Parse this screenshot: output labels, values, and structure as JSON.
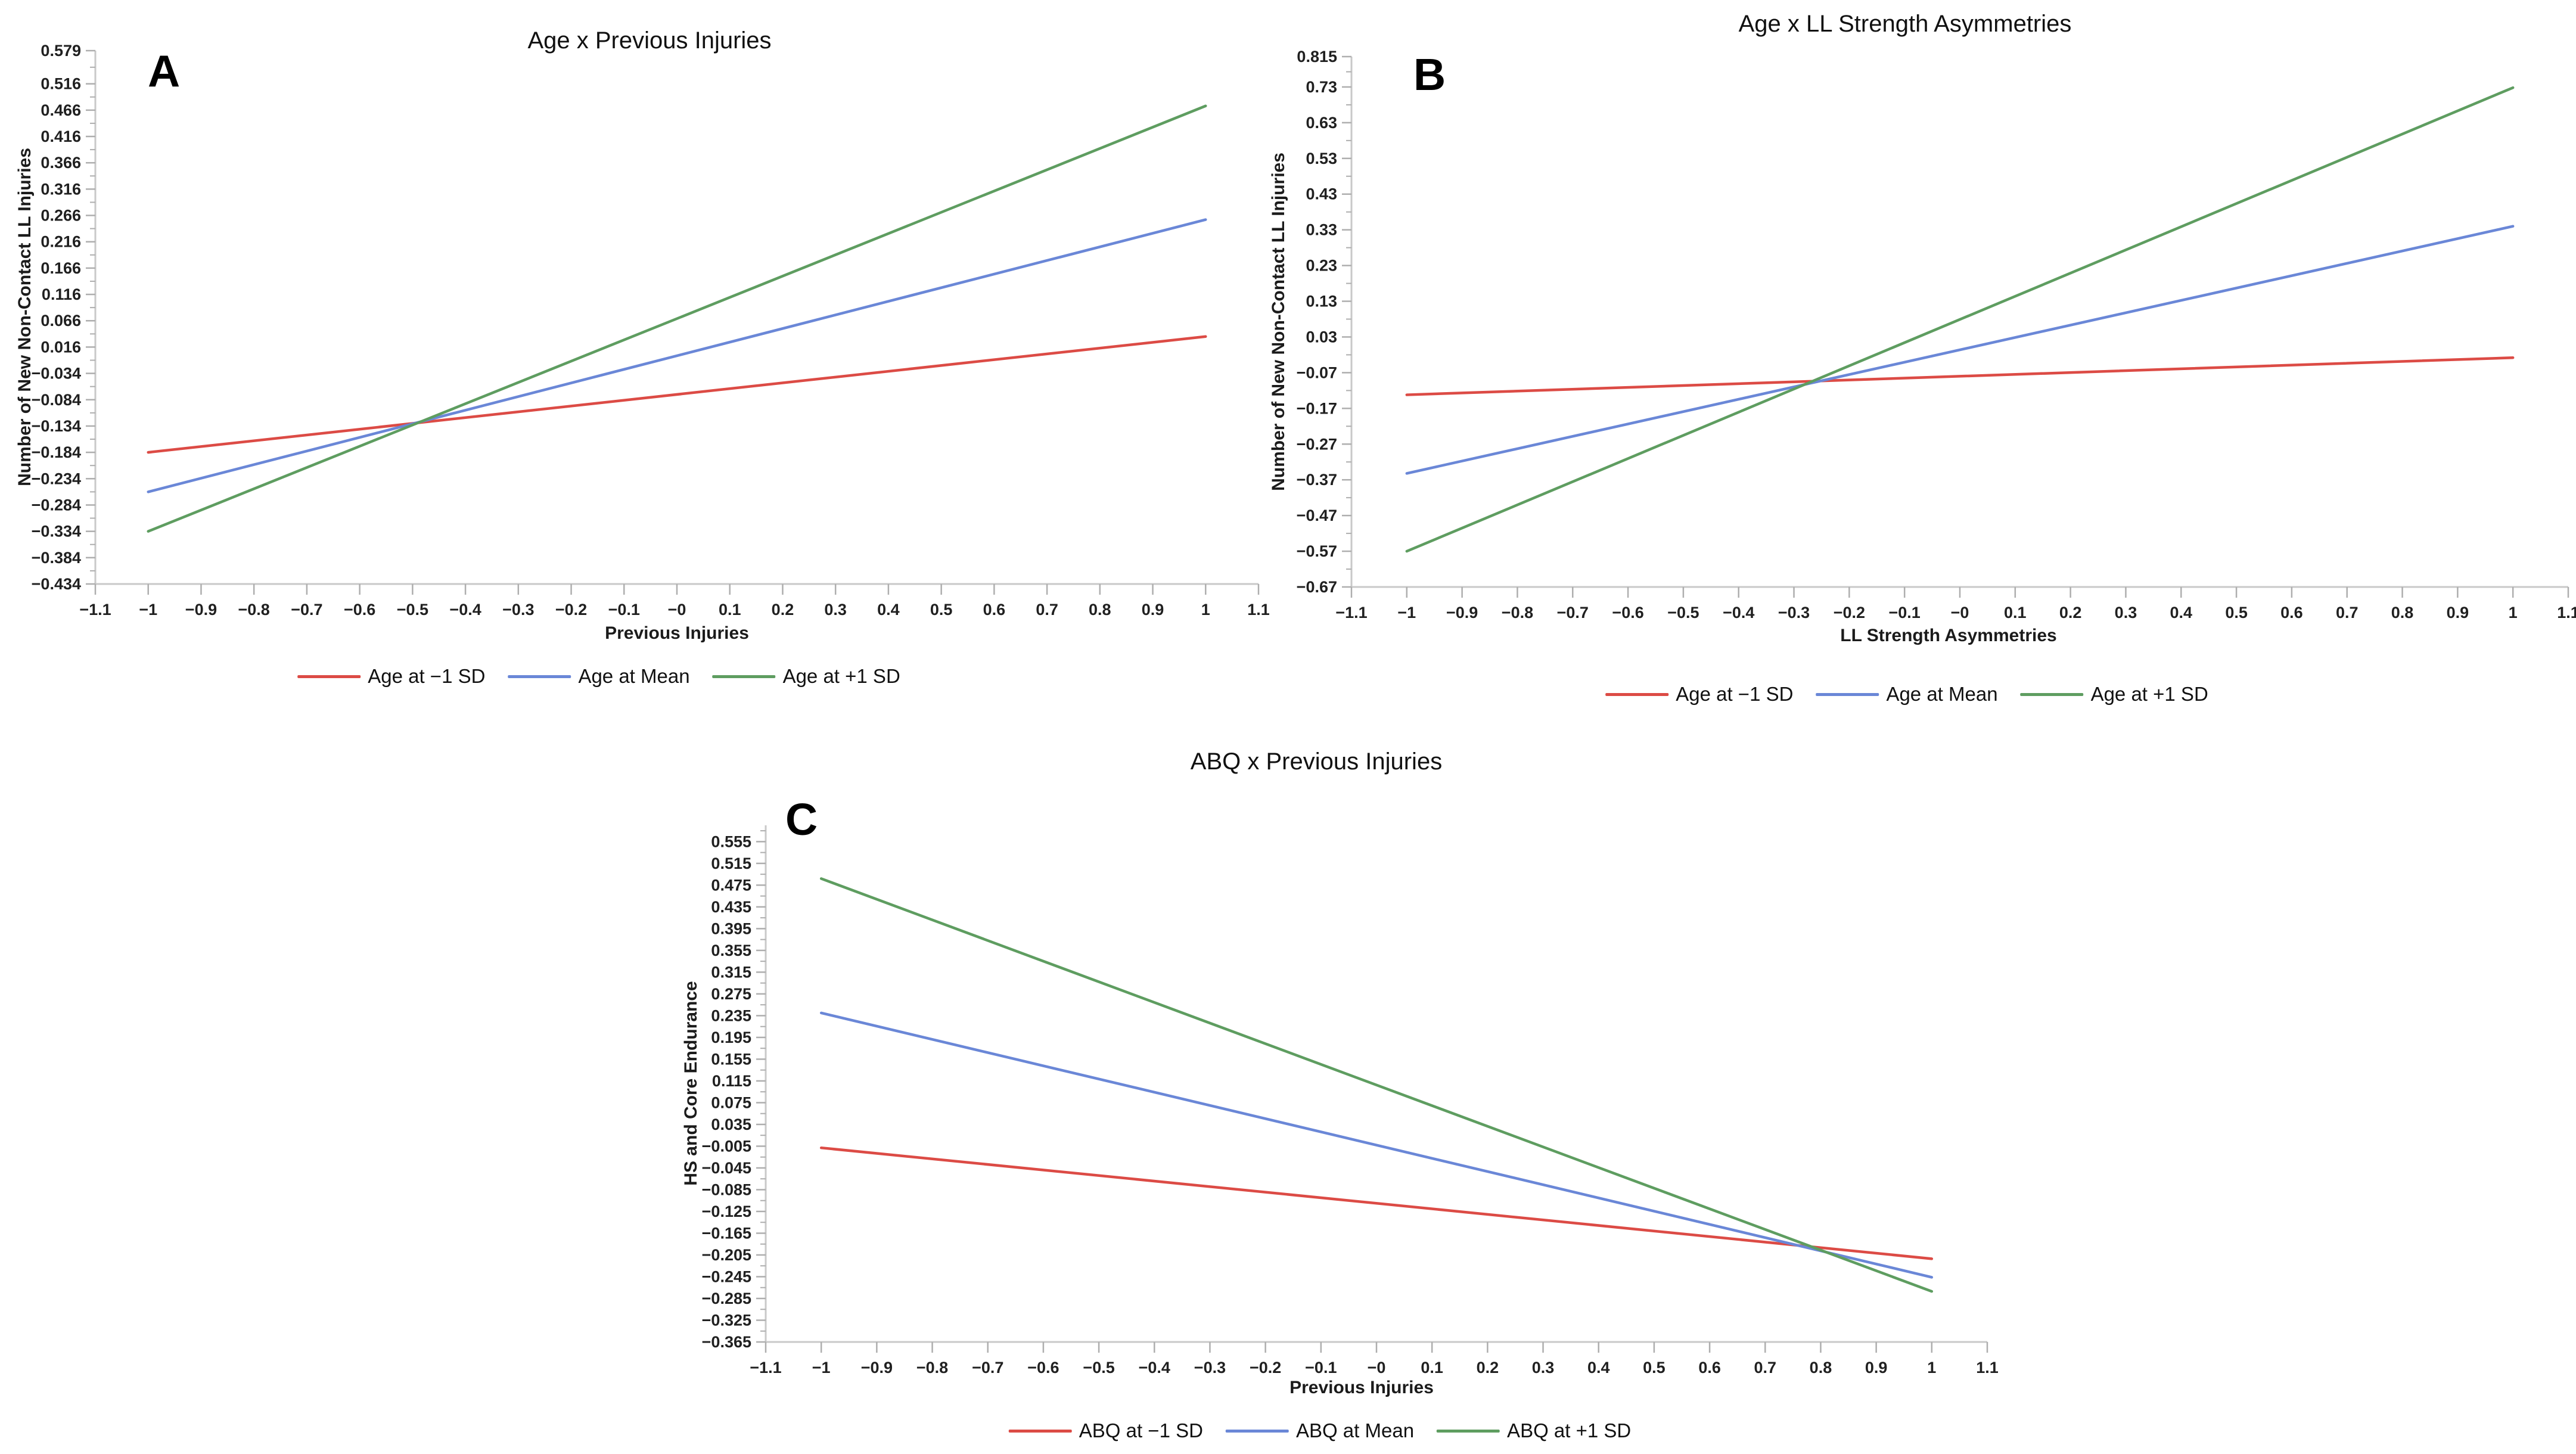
{
  "colors": {
    "red": "#DC4B45",
    "blue": "#6A87D7",
    "green": "#5E9D60",
    "axis": "#c9c9c9",
    "tick": "#aeaeae",
    "text": "#202020"
  },
  "chart_data": [
    {
      "type": "line",
      "panel_letter": "A",
      "title": "Age x Previous Injuries",
      "xlabel": "Previous Injuries",
      "ylabel": "Number of New Non-Contact LL Injuries",
      "xlim": [
        -1.1,
        1.1
      ],
      "ylim": [
        -0.434,
        0.579
      ],
      "grid": false,
      "legend_position": "bottom",
      "xticks": [
        -1.1,
        -1,
        -0.9,
        -0.8,
        -0.7,
        -0.6,
        -0.5,
        -0.4,
        -0.3,
        -0.2,
        -0.1,
        0,
        0.1,
        0.2,
        0.3,
        0.4,
        0.5,
        0.6,
        0.7,
        0.8,
        0.9,
        1,
        1.1
      ],
      "xtick_labels": [
        "−1.1",
        "−1",
        "−0.9",
        "−0.8",
        "−0.7",
        "−0.6",
        "−0.5",
        "−0.4",
        "−0.3",
        "−0.2",
        "−0.1",
        "−0",
        "0.1",
        "0.2",
        "0.3",
        "0.4",
        "0.5",
        "0.6",
        "0.7",
        "0.8",
        "0.9",
        "1",
        "1.1"
      ],
      "yticks": [
        0.579,
        0.516,
        0.466,
        0.416,
        0.366,
        0.316,
        0.266,
        0.216,
        0.166,
        0.116,
        0.066,
        0.016,
        -0.034,
        -0.084,
        -0.134,
        -0.184,
        -0.234,
        -0.284,
        -0.334,
        -0.384,
        -0.434
      ],
      "ytick_labels": [
        "0.579",
        "0.516",
        "0.466",
        "0.416",
        "0.366",
        "0.316",
        "0.266",
        "0.216",
        "0.166",
        "0.116",
        "0.066",
        "0.016",
        "−0.034",
        "−0.084",
        "−0.134",
        "−0.184",
        "−0.234",
        "−0.284",
        "−0.334",
        "−0.384",
        "−0.434"
      ],
      "series": [
        {
          "name": "Age at −1 SD",
          "color_key": "red",
          "x": [
            -1,
            1
          ],
          "y": [
            -0.184,
            0.036
          ]
        },
        {
          "name": "Age at Mean",
          "color_key": "blue",
          "x": [
            -1,
            1
          ],
          "y": [
            -0.259,
            0.258
          ]
        },
        {
          "name": "Age at +1 SD",
          "color_key": "green",
          "x": [
            -1,
            1
          ],
          "y": [
            -0.334,
            0.474
          ]
        }
      ]
    },
    {
      "type": "line",
      "panel_letter": "B",
      "title": "Age x LL Strength Asymmetries",
      "xlabel": "LL Strength Asymmetries",
      "ylabel": "Number of New Non-Contact LL Injuries",
      "xlim": [
        -1.1,
        1.1
      ],
      "ylim": [
        -0.67,
        0.815
      ],
      "grid": false,
      "legend_position": "bottom",
      "xticks": [
        -1.1,
        -1,
        -0.9,
        -0.8,
        -0.7,
        -0.6,
        -0.5,
        -0.4,
        -0.3,
        -0.2,
        -0.1,
        0,
        0.1,
        0.2,
        0.3,
        0.4,
        0.5,
        0.6,
        0.7,
        0.8,
        0.9,
        1,
        1.1
      ],
      "xtick_labels": [
        "−1.1",
        "−1",
        "−0.9",
        "−0.8",
        "−0.7",
        "−0.6",
        "−0.5",
        "−0.4",
        "−0.3",
        "−0.2",
        "−0.1",
        "−0",
        "0.1",
        "0.2",
        "0.3",
        "0.4",
        "0.5",
        "0.6",
        "0.7",
        "0.8",
        "0.9",
        "1",
        "1.1"
      ],
      "yticks": [
        0.815,
        0.73,
        0.63,
        0.53,
        0.43,
        0.33,
        0.23,
        0.13,
        0.03,
        -0.07,
        -0.17,
        -0.27,
        -0.37,
        -0.47,
        -0.57,
        -0.67
      ],
      "ytick_labels": [
        "0.815",
        "0.73",
        "0.63",
        "0.53",
        "0.43",
        "0.33",
        "0.23",
        "0.13",
        "0.03",
        "−0.07",
        "−0.17",
        "−0.27",
        "−0.37",
        "−0.47",
        "−0.57",
        "−0.67"
      ],
      "series": [
        {
          "name": "Age at −1 SD",
          "color_key": "red",
          "x": [
            -1,
            1
          ],
          "y": [
            -0.132,
            -0.028
          ]
        },
        {
          "name": "Age at Mean",
          "color_key": "blue",
          "x": [
            -1,
            1
          ],
          "y": [
            -0.352,
            0.34
          ]
        },
        {
          "name": "Age at +1 SD",
          "color_key": "green",
          "x": [
            -1,
            1
          ],
          "y": [
            -0.57,
            0.728
          ]
        }
      ]
    },
    {
      "type": "line",
      "panel_letter": "C",
      "title": "ABQ x Previous Injuries",
      "xlabel": "Previous Injuries",
      "ylabel": "HS and Core Endurance",
      "xlim": [
        -1.1,
        1.1
      ],
      "ylim": [
        -0.365,
        0.585
      ],
      "grid": false,
      "legend_position": "bottom",
      "xticks": [
        -1.1,
        -1,
        -0.9,
        -0.8,
        -0.7,
        -0.6,
        -0.5,
        -0.4,
        -0.3,
        -0.2,
        -0.1,
        0,
        0.1,
        0.2,
        0.3,
        0.4,
        0.5,
        0.6,
        0.7,
        0.8,
        0.9,
        1,
        1.1
      ],
      "xtick_labels": [
        "−1.1",
        "−1",
        "−0.9",
        "−0.8",
        "−0.7",
        "−0.6",
        "−0.5",
        "−0.4",
        "−0.3",
        "−0.2",
        "−0.1",
        "−0",
        "0.1",
        "0.2",
        "0.3",
        "0.4",
        "0.5",
        "0.6",
        "0.7",
        "0.8",
        "0.9",
        "1",
        "1.1"
      ],
      "yticks": [
        0.555,
        0.515,
        0.475,
        0.435,
        0.395,
        0.355,
        0.315,
        0.275,
        0.235,
        0.195,
        0.155,
        0.115,
        0.075,
        0.035,
        -0.005,
        -0.045,
        -0.085,
        -0.125,
        -0.165,
        -0.205,
        -0.245,
        -0.285,
        -0.325,
        -0.365
      ],
      "ytick_labels": [
        "0.555",
        "0.515",
        "0.475",
        "0.435",
        "0.395",
        "0.355",
        "0.315",
        "0.275",
        "0.235",
        "0.195",
        "0.155",
        "0.115",
        "0.075",
        "0.035",
        "−0.005",
        "−0.045",
        "−0.085",
        "−0.125",
        "−0.165",
        "−0.205",
        "−0.245",
        "−0.285",
        "−0.325",
        "−0.365"
      ],
      "series": [
        {
          "name": "ABQ at −1 SD",
          "color_key": "red",
          "x": [
            -1,
            1
          ],
          "y": [
            -0.008,
            -0.212
          ]
        },
        {
          "name": "ABQ at Mean",
          "color_key": "blue",
          "x": [
            -1,
            1
          ],
          "y": [
            0.24,
            -0.246
          ]
        },
        {
          "name": "ABQ at +1 SD",
          "color_key": "green",
          "x": [
            -1,
            1
          ],
          "y": [
            0.487,
            -0.272
          ]
        }
      ]
    }
  ]
}
